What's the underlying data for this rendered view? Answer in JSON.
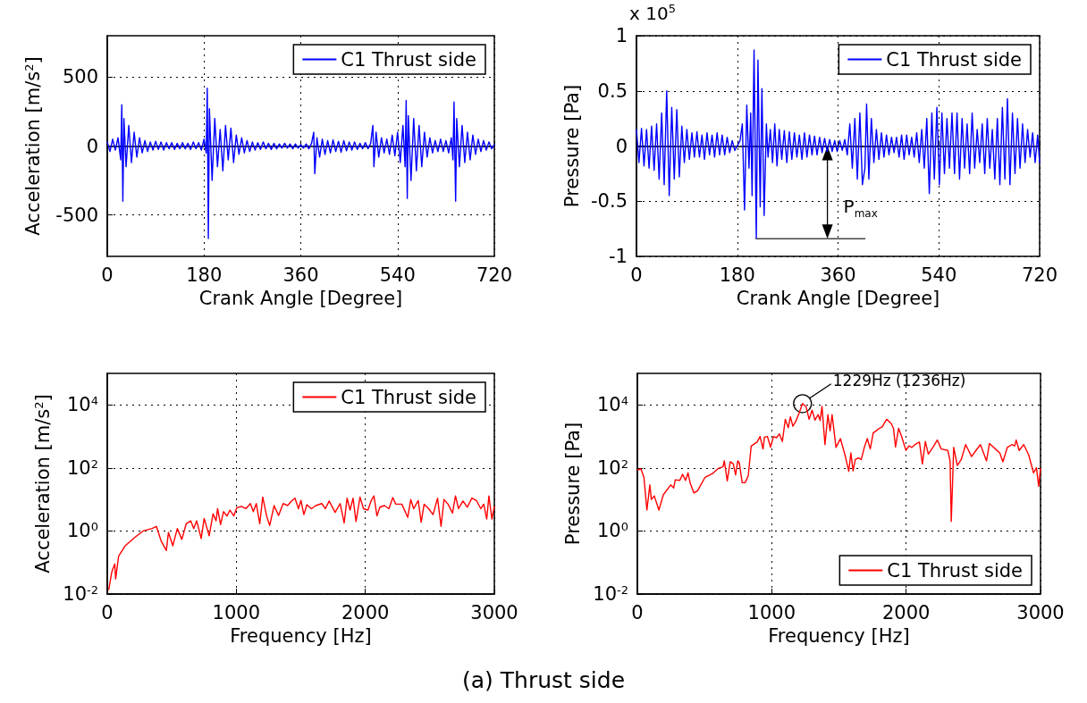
{
  "chart_data": [
    {
      "type": "line",
      "xlabel": "Crank Angle [Degree]",
      "ylabel": "Acceleration [m/s$^{2}$]",
      "xlim": [
        0,
        720
      ],
      "xticks": [
        0,
        180,
        360,
        540,
        720
      ],
      "ylim": [
        -800,
        800
      ],
      "yticks": [
        -500,
        0,
        500
      ],
      "grid": true,
      "legend": "top right",
      "series": [
        {
          "name": "C1 Thrust side",
          "color": "#0000ff",
          "x": [
            0,
            5,
            10,
            15,
            20,
            25,
            27,
            29,
            31,
            35,
            40,
            45,
            50,
            55,
            60,
            65,
            70,
            75,
            80,
            85,
            90,
            95,
            100,
            105,
            110,
            115,
            120,
            125,
            130,
            135,
            140,
            145,
            150,
            155,
            160,
            165,
            170,
            175,
            180,
            184,
            186,
            188,
            190,
            195,
            200,
            205,
            210,
            215,
            220,
            225,
            230,
            235,
            240,
            245,
            250,
            255,
            260,
            265,
            270,
            275,
            280,
            285,
            290,
            295,
            300,
            305,
            310,
            315,
            320,
            325,
            330,
            335,
            340,
            345,
            350,
            355,
            360,
            365,
            370,
            375,
            380,
            384,
            386,
            390,
            395,
            400,
            405,
            410,
            415,
            420,
            425,
            430,
            435,
            440,
            445,
            450,
            455,
            460,
            465,
            470,
            475,
            480,
            485,
            490,
            494,
            496,
            500,
            505,
            510,
            515,
            520,
            525,
            530,
            535,
            540,
            545,
            550,
            554,
            556,
            558,
            560,
            565,
            570,
            575,
            580,
            585,
            590,
            595,
            600,
            605,
            610,
            615,
            620,
            625,
            630,
            635,
            640,
            643,
            645,
            648,
            650,
            655,
            660,
            665,
            670,
            675,
            680,
            685,
            690,
            695,
            700,
            705,
            710,
            715,
            720
          ],
          "values": [
            30,
            -40,
            50,
            -30,
            60,
            -100,
            300,
            -400,
            200,
            -150,
            150,
            -120,
            100,
            -80,
            60,
            -50,
            40,
            -40,
            30,
            -30,
            35,
            -25,
            30,
            -30,
            25,
            -20,
            25,
            -25,
            20,
            -20,
            25,
            -20,
            20,
            -25,
            30,
            -20,
            25,
            -30,
            50,
            -50,
            420,
            -670,
            270,
            -250,
            200,
            -150,
            120,
            -180,
            150,
            -100,
            130,
            -120,
            80,
            -60,
            60,
            -50,
            40,
            -40,
            30,
            -30,
            25,
            -25,
            30,
            -20,
            20,
            -25,
            20,
            -20,
            15,
            -15,
            20,
            -15,
            15,
            -20,
            15,
            -15,
            10,
            -15,
            15,
            -20,
            20,
            100,
            -200,
            60,
            -80,
            50,
            -60,
            40,
            -50,
            45,
            -40,
            35,
            -45,
            40,
            -35,
            30,
            -30,
            30,
            -25,
            20,
            -20,
            25,
            -20,
            20,
            150,
            -150,
            100,
            -80,
            60,
            -50,
            50,
            -60,
            80,
            -70,
            100,
            -120,
            150,
            -150,
            330,
            -380,
            220,
            -250,
            200,
            -180,
            150,
            -150,
            100,
            -80,
            60,
            -50,
            40,
            -40,
            50,
            -40,
            40,
            -50,
            60,
            -100,
            320,
            -400,
            200,
            -150,
            150,
            -120,
            100,
            -100,
            80,
            -60,
            50,
            -40,
            40,
            -30,
            30,
            -20,
            10
          ]
        }
      ]
    },
    {
      "type": "line",
      "xlabel": "Crank Angle [Degree]",
      "ylabel": "Pressure [Pa]",
      "xlim": [
        0,
        720
      ],
      "xticks": [
        0,
        180,
        360,
        540,
        720
      ],
      "ylim": [
        -1,
        1
      ],
      "yticks": [
        -1,
        -0.5,
        0,
        0.5,
        1
      ],
      "grid": true,
      "legend": "top right",
      "annotations": [
        "x 10$^{5}$",
        {
          "text": "P$_{max}$",
          "x": 341,
          "y": -0.84
        }
      ],
      "series": [
        {
          "name": "C1 Thrust side",
          "color": "#0000ff",
          "x": [
            0,
            4.5,
            9,
            13.5,
            18,
            22.5,
            27,
            31.5,
            36,
            40.5,
            45,
            49.5,
            54,
            58.5,
            63,
            67.5,
            72,
            76.5,
            81,
            85.5,
            90,
            94.5,
            99,
            103.5,
            108,
            112.5,
            117,
            121.5,
            126,
            130.5,
            135,
            139.5,
            144,
            148.5,
            153,
            157.5,
            162,
            166.5,
            171,
            175.5,
            180,
            185,
            189,
            193,
            197,
            201,
            204,
            206.5,
            210,
            214,
            217,
            221,
            224,
            228,
            232,
            235,
            239,
            243,
            247,
            251,
            255,
            259.5,
            264,
            268.5,
            273,
            277.5,
            282,
            286.5,
            291,
            295.5,
            300,
            304.5,
            309,
            313.5,
            318,
            322.5,
            327,
            331.5,
            336,
            340.5,
            345,
            349.5,
            354,
            358.5,
            363,
            367.5,
            372,
            376.5,
            381,
            385.5,
            390,
            394.5,
            399,
            403.5,
            408,
            411,
            415,
            419.5,
            424,
            428.5,
            433,
            437.5,
            442,
            446.5,
            451,
            455.5,
            460,
            464.5,
            469,
            473.5,
            478,
            482.5,
            487,
            491.5,
            496,
            500.5,
            505,
            509.5,
            514,
            518.5,
            523,
            527.5,
            532,
            536.5,
            541,
            545.5,
            550,
            554.5,
            559,
            563.5,
            568,
            572.5,
            577,
            581.5,
            586,
            590.5,
            595,
            599.5,
            604,
            608.5,
            613,
            617.5,
            622,
            626.5,
            631,
            635.5,
            640,
            644.5,
            649,
            653.5,
            658,
            662.5,
            667,
            671.5,
            676,
            680.5,
            685,
            689.5,
            694,
            698.5,
            703,
            707.5,
            712,
            716.5,
            720
          ],
          "values": [
            0.15,
            -0.15,
            0.16,
            -0.18,
            0.15,
            -0.2,
            0.18,
            -0.22,
            0.2,
            -0.3,
            0.3,
            -0.35,
            0.5,
            -0.45,
            0.35,
            -0.3,
            0.33,
            -0.28,
            0.18,
            -0.15,
            0.15,
            -0.12,
            0.12,
            -0.1,
            0.13,
            -0.1,
            0.1,
            -0.12,
            0.12,
            -0.08,
            0.1,
            -0.1,
            0.12,
            -0.08,
            0.1,
            -0.08,
            0.08,
            -0.06,
            0.05,
            -0.04,
            0,
            0.05,
            0.2,
            -0.58,
            0.37,
            -0.2,
            0.3,
            -0.45,
            0.87,
            -0.84,
            0.78,
            -0.55,
            0.52,
            -0.63,
            0.2,
            -0.1,
            0.15,
            -0.15,
            0.2,
            -0.18,
            0.15,
            -0.12,
            0.14,
            -0.15,
            0.13,
            -0.12,
            0.12,
            -0.1,
            0.1,
            -0.12,
            0.12,
            -0.1,
            0.1,
            -0.08,
            0.09,
            -0.08,
            0.08,
            -0.06,
            0.07,
            -0.05,
            0.06,
            -0.05,
            0.05,
            -0.05,
            0.05,
            -0.04,
            0.06,
            -0.08,
            0.2,
            -0.2,
            0.25,
            -0.3,
            0.3,
            -0.35,
            -0.2,
            0.38,
            -0.3,
            0.25,
            -0.15,
            0.15,
            -0.12,
            0.12,
            -0.1,
            0.1,
            -0.08,
            0.08,
            -0.06,
            0.08,
            -0.1,
            0.1,
            -0.12,
            0.1,
            -0.08,
            0.08,
            -0.1,
            0.12,
            -0.15,
            0.15,
            -0.2,
            0.25,
            -0.43,
            0.3,
            -0.3,
            0.35,
            -0.35,
            0.3,
            -0.25,
            0.25,
            -0.2,
            0.3,
            -0.25,
            0.3,
            -0.3,
            0.25,
            -0.2,
            0.2,
            -0.25,
            0.3,
            -0.2,
            0.15,
            -0.15,
            0.2,
            -0.25,
            0.25,
            -0.2,
            0.15,
            -0.3,
            0.25,
            -0.35,
            0.35,
            -0.3,
            0.43,
            -0.35,
            0.3,
            -0.25,
            0.25,
            -0.2,
            0.2,
            -0.15,
            0.15,
            -0.1,
            0.12,
            -0.15,
            0.1,
            -0.15
          ]
        },
        {
          "type": "line",
          "color": "#444444",
          "x": [
            214,
            408
          ],
          "values": [
            -0.84,
            -0.84
          ]
        }
      ]
    },
    {
      "type": "line",
      "xlabel": "Frequency [Hz]",
      "ylabel": "Acceleration [m/s$^{2}$]",
      "log": "y",
      "xlim": [
        0,
        3000
      ],
      "xticks": [
        0,
        1000,
        2000,
        3000
      ],
      "ylim": [
        0.01,
        100000
      ],
      "yticks": [
        {
          "value": 0.01,
          "label": "10$^{-2}$"
        },
        {
          "value": 1,
          "label": "10$^{0}$"
        },
        {
          "value": 100,
          "label": "10$^{2}$"
        },
        {
          "value": 10000,
          "label": "10$^{4}$"
        }
      ],
      "grid": true,
      "legend": "top right",
      "series": [
        {
          "name": "C1 Thrust side",
          "color": "#ff0000",
          "x": [
            12,
            35,
            58,
            65,
            88,
            139,
            208,
            277,
            347,
            381,
            416,
            458,
            474,
            508,
            543,
            578,
            612,
            647,
            670,
            693,
            728,
            751,
            790,
            820,
            843,
            855,
            878,
            901,
            928,
            951,
            981,
            1004,
            1039,
            1074,
            1109,
            1132,
            1155,
            1182,
            1205,
            1235,
            1259,
            1293,
            1328,
            1363,
            1397,
            1427,
            1455,
            1482,
            1501,
            1524,
            1547,
            1582,
            1616,
            1663,
            1690,
            1720,
            1766,
            1805,
            1836,
            1859,
            1882,
            1905,
            1928,
            1959,
            1986,
            2021,
            2044,
            2067,
            2090,
            2113,
            2148,
            2183,
            2213,
            2236,
            2283,
            2329,
            2352,
            2375,
            2410,
            2433,
            2456,
            2491,
            2525,
            2560,
            2587,
            2610,
            2641,
            2676,
            2699,
            2722,
            2757,
            2791,
            2826,
            2861,
            2895,
            2918,
            2941,
            2958,
            2981,
            3000
          ],
          "values": [
            0.014,
            0.05,
            0.09,
            0.03,
            0.16,
            0.34,
            0.6,
            1,
            1.2,
            1.4,
            0.5,
            0.24,
            0.9,
            0.34,
            1.2,
            0.54,
            1.7,
            2.1,
            1.2,
            2.1,
            0.58,
            2.5,
            0.7,
            3.5,
            2.1,
            5.1,
            1.6,
            4.1,
            3,
            4.6,
            3,
            5.5,
            6,
            5.1,
            7.4,
            4.1,
            7.4,
            1.7,
            12,
            3,
            1.5,
            6.4,
            3.1,
            7.4,
            6.4,
            8.9,
            11,
            5.1,
            9.3,
            3.3,
            6.8,
            5.1,
            6.4,
            7.4,
            5.1,
            8.9,
            3.9,
            7.4,
            1.8,
            11,
            4.6,
            11,
            2,
            12,
            5.1,
            4.6,
            8.9,
            13,
            3,
            5.7,
            6.4,
            5.1,
            11.5,
            7.1,
            7.1,
            2.7,
            9.9,
            5.1,
            9.3,
            1.9,
            7.1,
            5.1,
            3.3,
            11,
            1.4,
            9.9,
            7.1,
            3.7,
            13,
            5.1,
            8.9,
            5.7,
            11,
            9.3,
            5.1,
            7.1,
            2.4,
            13,
            2.4,
            6
          ]
        }
      ]
    },
    {
      "type": "line",
      "xlabel": "Frequency [Hz]",
      "ylabel": "Pressure [Pa]",
      "log": "y",
      "xlim": [
        0,
        3000
      ],
      "xticks": [
        0,
        1000,
        2000,
        3000
      ],
      "ylim": [
        0.01,
        100000
      ],
      "yticks": [
        {
          "value": 0.01,
          "label": "10$^{-2}$"
        },
        {
          "value": 1,
          "label": "10$^{0}$"
        },
        {
          "value": 100,
          "label": "10$^{2}$"
        },
        {
          "value": 10000,
          "label": "10$^{4}$"
        }
      ],
      "grid": true,
      "legend": "bottom right",
      "annotations": [
        {
          "text": "1229Hz (1236Hz)",
          "x": 1229,
          "y": 11000
        },
        "(a) Thrust side"
      ],
      "series": [
        {
          "name": "C1 Thrust side",
          "color": "#ff0000",
          "x": [
            0,
            27,
            49,
            71,
            93,
            104,
            126,
            160,
            193,
            248,
            270,
            282,
            315,
            337,
            359,
            377,
            393,
            421,
            448,
            503,
            559,
            603,
            637,
            647,
            669,
            691,
            714,
            731,
            747,
            758,
            780,
            802,
            825,
            847,
            891,
            913,
            935,
            946,
            968,
            991,
            1013,
            1035,
            1057,
            1079,
            1101,
            1123,
            1139,
            1157,
            1179,
            1203,
            1229,
            1256,
            1278,
            1300,
            1322,
            1345,
            1360,
            1374,
            1396,
            1418,
            1434,
            1449,
            1478,
            1511,
            1545,
            1573,
            1589,
            1605,
            1622,
            1644,
            1666,
            1689,
            1711,
            1733,
            1755,
            1777,
            1800,
            1822,
            1855,
            1888,
            1906,
            1921,
            1944,
            1966,
            1999,
            2021,
            2043,
            2066,
            2099,
            2121,
            2143,
            2165,
            2199,
            2232,
            2261,
            2310,
            2327,
            2336,
            2354,
            2381,
            2410,
            2443,
            2487,
            2520,
            2553,
            2598,
            2620,
            2664,
            2697,
            2720,
            2753,
            2786,
            2808,
            2819,
            2841,
            2875,
            2912,
            2948,
            2970,
            2986,
            3000
          ],
          "values": [
            87,
            93,
            50,
            4.6,
            29,
            10,
            13,
            4.6,
            14,
            29,
            23,
            42,
            40,
            63,
            40,
            70,
            33,
            16,
            19,
            50,
            66,
            97,
            108,
            168,
            39,
            157,
            134,
            60,
            168,
            150,
            34,
            34,
            56,
            495,
            660,
            1000,
            400,
            950,
            1000,
            460,
            1000,
            900,
            1200,
            690,
            3500,
            1900,
            4200,
            2100,
            3000,
            5400,
            11000,
            8600,
            3500,
            6800,
            3300,
            4900,
            3200,
            9000,
            550,
            4900,
            1500,
            4900,
            450,
            850,
            260,
            78,
            300,
            81,
            185,
            208,
            185,
            450,
            850,
            400,
            1300,
            1500,
            1800,
            2000,
            3500,
            2600,
            1800,
            460,
            1800,
            1000,
            360,
            500,
            450,
            550,
            660,
            134,
            690,
            275,
            450,
            770,
            400,
            360,
            168,
            2,
            450,
            120,
            185,
            550,
            230,
            360,
            550,
            168,
            600,
            400,
            300,
            157,
            450,
            550,
            500,
            770,
            360,
            550,
            260,
            70,
            101,
            26,
            97
          ]
        }
      ]
    }
  ]
}
